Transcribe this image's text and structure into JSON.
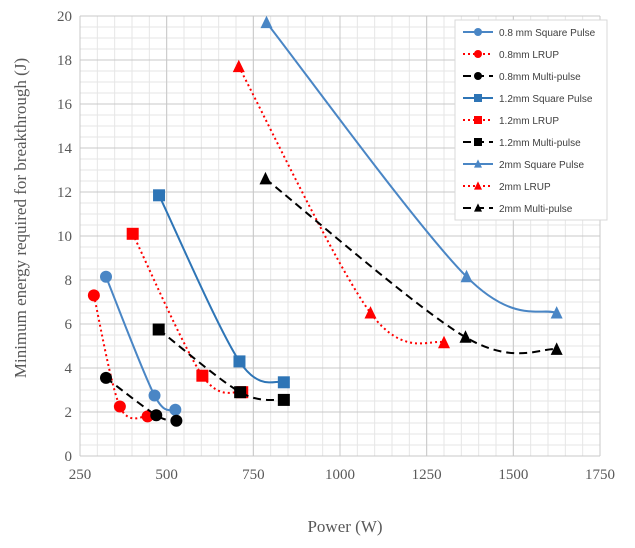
{
  "chart_data": {
    "type": "line",
    "xlabel": "Power (W)",
    "ylabel": "Minimum energy required for breakthrough (J)",
    "xlim": [
      250,
      1750
    ],
    "ylim": [
      0,
      20
    ],
    "x_ticks": [
      "250",
      "500",
      "750",
      "1000",
      "1250",
      "1500",
      "1750"
    ],
    "y_ticks": [
      "0",
      "2",
      "4",
      "6",
      "8",
      "10",
      "12",
      "14",
      "16",
      "18",
      "20"
    ],
    "grid": true,
    "legend_position": "top-right",
    "series": [
      {
        "name": "0.8 mm Square Pulse",
        "color": "#4a86c5",
        "style": "solid",
        "marker": "circle",
        "x": [
          325,
          465,
          525
        ],
        "y": [
          8.15,
          2.75,
          2.1
        ]
      },
      {
        "name": "0.8mm LRUP",
        "color": "#ff0000",
        "style": "dotted",
        "marker": "circle",
        "x": [
          290,
          365,
          445
        ],
        "y": [
          7.3,
          2.25,
          1.8
        ]
      },
      {
        "name": "0.8mm Multi-pulse",
        "color": "#000000",
        "style": "dashed",
        "marker": "circle",
        "x": [
          325,
          470,
          528
        ],
        "y": [
          3.55,
          1.85,
          1.6
        ]
      },
      {
        "name": "1.2mm Square Pulse",
        "color": "#2e75b6",
        "style": "solid",
        "marker": "square",
        "x": [
          478,
          710,
          838
        ],
        "y": [
          11.85,
          4.3,
          3.35
        ]
      },
      {
        "name": "1.2mm LRUP",
        "color": "#ff0000",
        "style": "dotted",
        "marker": "square",
        "x": [
          402,
          603,
          718
        ],
        "y": [
          10.1,
          3.65,
          2.9
        ]
      },
      {
        "name": "1.2mm Multi-pulse",
        "color": "#000000",
        "style": "dashed",
        "marker": "square",
        "x": [
          477,
          712,
          838
        ],
        "y": [
          5.75,
          2.9,
          2.55
        ]
      },
      {
        "name": "2mm Square Pulse",
        "color": "#4a86c5",
        "style": "solid",
        "marker": "triangle",
        "x": [
          788,
          1365,
          1625
        ],
        "y": [
          19.7,
          8.15,
          6.5
        ]
      },
      {
        "name": "2mm LRUP",
        "color": "#ff0000",
        "style": "dotted",
        "marker": "triangle",
        "x": [
          708,
          1088,
          1300
        ],
        "y": [
          17.7,
          6.5,
          5.15
        ]
      },
      {
        "name": "2mm Multi-pulse",
        "color": "#000000",
        "style": "dashed",
        "marker": "triangle",
        "x": [
          785,
          1362,
          1625
        ],
        "y": [
          12.6,
          5.4,
          4.85
        ]
      }
    ]
  }
}
